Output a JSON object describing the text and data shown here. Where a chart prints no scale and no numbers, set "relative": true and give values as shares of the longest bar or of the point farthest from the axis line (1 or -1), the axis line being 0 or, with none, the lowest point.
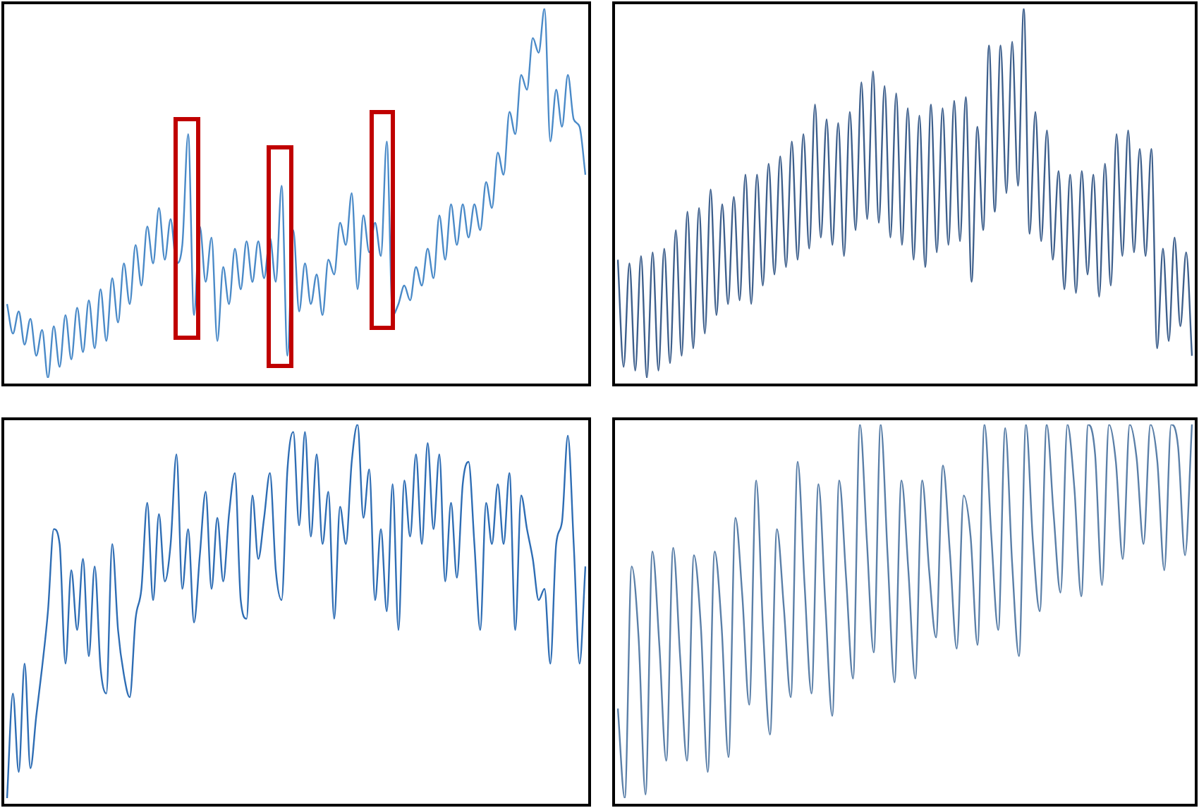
{
  "chart_data": [
    {
      "type": "line",
      "relative": true,
      "color": "#4a8ac8",
      "categories": [
        null,
        null,
        null,
        null,
        null,
        null,
        null,
        null,
        null,
        null,
        null,
        null,
        null,
        null,
        null,
        null,
        null,
        null,
        null,
        null,
        null,
        null,
        null,
        null,
        null,
        null,
        null,
        null,
        null,
        null,
        null,
        null,
        null,
        null,
        null,
        null,
        null,
        null,
        null,
        null,
        null,
        null,
        null,
        null,
        null,
        null,
        null,
        null,
        null,
        null,
        null,
        null,
        null,
        null,
        null,
        null,
        null,
        null,
        null,
        null,
        null,
        null,
        null,
        null,
        null,
        null,
        null,
        null,
        null,
        null,
        null,
        null,
        null,
        null,
        null,
        null,
        null,
        null,
        null,
        null,
        null,
        null,
        null,
        null,
        null,
        null,
        null,
        null,
        null,
        null,
        null,
        null,
        null,
        null,
        null,
        null,
        null,
        null,
        null,
        null
      ],
      "values": [
        0.2,
        0.12,
        0.18,
        0.09,
        0.16,
        0.06,
        0.13,
        0.0,
        0.14,
        0.03,
        0.17,
        0.05,
        0.19,
        0.07,
        0.21,
        0.08,
        0.24,
        0.1,
        0.27,
        0.15,
        0.31,
        0.2,
        0.36,
        0.25,
        0.41,
        0.31,
        0.46,
        0.32,
        0.43,
        0.31,
        0.36,
        0.66,
        0.17,
        0.41,
        0.26,
        0.38,
        0.1,
        0.3,
        0.2,
        0.35,
        0.24,
        0.37,
        0.26,
        0.37,
        0.27,
        0.38,
        0.26,
        0.52,
        0.06,
        0.4,
        0.18,
        0.31,
        0.2,
        0.28,
        0.17,
        0.32,
        0.28,
        0.42,
        0.36,
        0.5,
        0.24,
        0.44,
        0.34,
        0.42,
        0.33,
        0.64,
        0.17,
        0.2,
        0.25,
        0.21,
        0.3,
        0.25,
        0.35,
        0.27,
        0.44,
        0.32,
        0.47,
        0.36,
        0.47,
        0.38,
        0.47,
        0.4,
        0.53,
        0.46,
        0.61,
        0.55,
        0.72,
        0.66,
        0.82,
        0.78,
        0.92,
        0.88,
        1.0,
        0.64,
        0.78,
        0.68,
        0.82,
        0.7,
        0.68,
        0.55
      ]
    },
    {
      "type": "line",
      "relative": true,
      "color": "#3d5f8c",
      "categories": [
        null,
        null,
        null,
        null,
        null,
        null,
        null,
        null,
        null,
        null,
        null,
        null,
        null,
        null,
        null,
        null,
        null,
        null,
        null,
        null,
        null,
        null,
        null,
        null,
        null,
        null,
        null,
        null,
        null,
        null,
        null,
        null,
        null,
        null,
        null,
        null,
        null,
        null,
        null,
        null,
        null,
        null,
        null,
        null,
        null,
        null,
        null,
        null,
        null,
        null,
        null,
        null,
        null,
        null,
        null,
        null,
        null,
        null,
        null,
        null,
        null,
        null,
        null,
        null,
        null,
        null,
        null,
        null,
        null,
        null,
        null,
        null,
        null,
        null,
        null,
        null,
        null,
        null,
        null,
        null,
        null,
        null,
        null,
        null,
        null,
        null,
        null,
        null,
        null,
        null,
        null,
        null,
        null,
        null,
        null,
        null,
        null,
        null,
        null,
        null
      ],
      "values": [
        0.32,
        0.03,
        0.31,
        0.02,
        0.33,
        0.0,
        0.34,
        0.02,
        0.35,
        0.04,
        0.4,
        0.06,
        0.45,
        0.08,
        0.46,
        0.12,
        0.51,
        0.17,
        0.47,
        0.2,
        0.49,
        0.21,
        0.55,
        0.2,
        0.55,
        0.25,
        0.58,
        0.28,
        0.6,
        0.3,
        0.64,
        0.32,
        0.66,
        0.35,
        0.74,
        0.38,
        0.7,
        0.36,
        0.69,
        0.33,
        0.72,
        0.4,
        0.8,
        0.43,
        0.83,
        0.42,
        0.79,
        0.38,
        0.77,
        0.36,
        0.73,
        0.32,
        0.71,
        0.3,
        0.74,
        0.34,
        0.73,
        0.36,
        0.75,
        0.37,
        0.76,
        0.26,
        0.68,
        0.4,
        0.9,
        0.45,
        0.9,
        0.5,
        0.91,
        0.52,
        1.0,
        0.39,
        0.72,
        0.37,
        0.67,
        0.32,
        0.56,
        0.24,
        0.55,
        0.23,
        0.56,
        0.28,
        0.55,
        0.22,
        0.58,
        0.25,
        0.66,
        0.33,
        0.67,
        0.34,
        0.62,
        0.33,
        0.62,
        0.08,
        0.35,
        0.1,
        0.38,
        0.14,
        0.34,
        0.06
      ]
    },
    {
      "type": "line",
      "relative": true,
      "color": "#2e6db4",
      "categories": [
        null,
        null,
        null,
        null,
        null,
        null,
        null,
        null,
        null,
        null,
        null,
        null,
        null,
        null,
        null,
        null,
        null,
        null,
        null,
        null,
        null,
        null,
        null,
        null,
        null,
        null,
        null,
        null,
        null,
        null,
        null,
        null,
        null,
        null,
        null,
        null,
        null,
        null,
        null,
        null,
        null,
        null,
        null,
        null,
        null,
        null,
        null,
        null,
        null,
        null,
        null,
        null,
        null,
        null,
        null,
        null,
        null,
        null,
        null,
        null,
        null,
        null,
        null,
        null,
        null,
        null,
        null,
        null,
        null,
        null,
        null,
        null,
        null,
        null,
        null,
        null,
        null,
        null,
        null,
        null,
        null,
        null,
        null,
        null,
        null,
        null,
        null,
        null,
        null,
        null,
        null,
        null,
        null,
        null,
        null,
        null,
        null,
        null,
        null,
        null
      ],
      "values": [
        0.0,
        0.28,
        0.07,
        0.36,
        0.08,
        0.22,
        0.35,
        0.5,
        0.72,
        0.68,
        0.36,
        0.61,
        0.45,
        0.64,
        0.38,
        0.62,
        0.35,
        0.28,
        0.68,
        0.45,
        0.33,
        0.27,
        0.48,
        0.56,
        0.79,
        0.53,
        0.76,
        0.58,
        0.68,
        0.92,
        0.56,
        0.72,
        0.47,
        0.65,
        0.82,
        0.56,
        0.75,
        0.58,
        0.76,
        0.87,
        0.53,
        0.48,
        0.81,
        0.64,
        0.75,
        0.87,
        0.61,
        0.53,
        0.88,
        0.98,
        0.73,
        0.98,
        0.7,
        0.92,
        0.68,
        0.82,
        0.48,
        0.78,
        0.68,
        0.9,
        1.0,
        0.75,
        0.88,
        0.53,
        0.72,
        0.5,
        0.84,
        0.45,
        0.85,
        0.7,
        0.92,
        0.68,
        0.95,
        0.72,
        0.92,
        0.58,
        0.79,
        0.59,
        0.84,
        0.9,
        0.68,
        0.45,
        0.79,
        0.68,
        0.84,
        0.68,
        0.87,
        0.45,
        0.81,
        0.72,
        0.64,
        0.53,
        0.56,
        0.36,
        0.68,
        0.74,
        0.97,
        0.68,
        0.36,
        0.62
      ]
    },
    {
      "type": "line",
      "relative": true,
      "color": "#5a7fa8",
      "categories": [
        null,
        null,
        null,
        null,
        null,
        null,
        null,
        null,
        null,
        null,
        null,
        null,
        null,
        null,
        null,
        null,
        null,
        null,
        null,
        null,
        null,
        null,
        null,
        null,
        null,
        null,
        null,
        null,
        null,
        null,
        null,
        null,
        null,
        null,
        null,
        null,
        null,
        null,
        null,
        null,
        null,
        null,
        null,
        null,
        null,
        null,
        null,
        null,
        null,
        null,
        null,
        null,
        null,
        null,
        null,
        null,
        null,
        null,
        null,
        null,
        null,
        null,
        null,
        null,
        null,
        null,
        null,
        null,
        null,
        null,
        null,
        null,
        null,
        null,
        null,
        null,
        null,
        null,
        null,
        null,
        null,
        null,
        null,
        null
      ],
      "values": [
        0.24,
        0.0,
        0.62,
        0.43,
        0.01,
        0.66,
        0.41,
        0.1,
        0.67,
        0.38,
        0.1,
        0.65,
        0.46,
        0.07,
        0.66,
        0.46,
        0.11,
        0.75,
        0.54,
        0.25,
        0.85,
        0.45,
        0.17,
        0.72,
        0.51,
        0.27,
        0.9,
        0.57,
        0.28,
        0.84,
        0.52,
        0.22,
        0.85,
        0.59,
        0.32,
        1.0,
        0.69,
        0.39,
        1.0,
        0.65,
        0.31,
        0.85,
        0.61,
        0.32,
        0.85,
        0.61,
        0.43,
        0.89,
        0.66,
        0.4,
        0.81,
        0.7,
        0.41,
        1.0,
        0.7,
        0.45,
        0.99,
        0.63,
        0.38,
        1.0,
        0.69,
        0.5,
        1.0,
        0.76,
        0.55,
        1.0,
        0.83,
        0.54,
        1.0,
        0.92,
        0.57,
        1.0,
        0.9,
        0.64,
        1.0,
        0.91,
        0.68,
        1.0,
        0.9,
        0.61,
        1.0,
        0.94,
        0.65,
        1.0
      ]
    }
  ]
}
